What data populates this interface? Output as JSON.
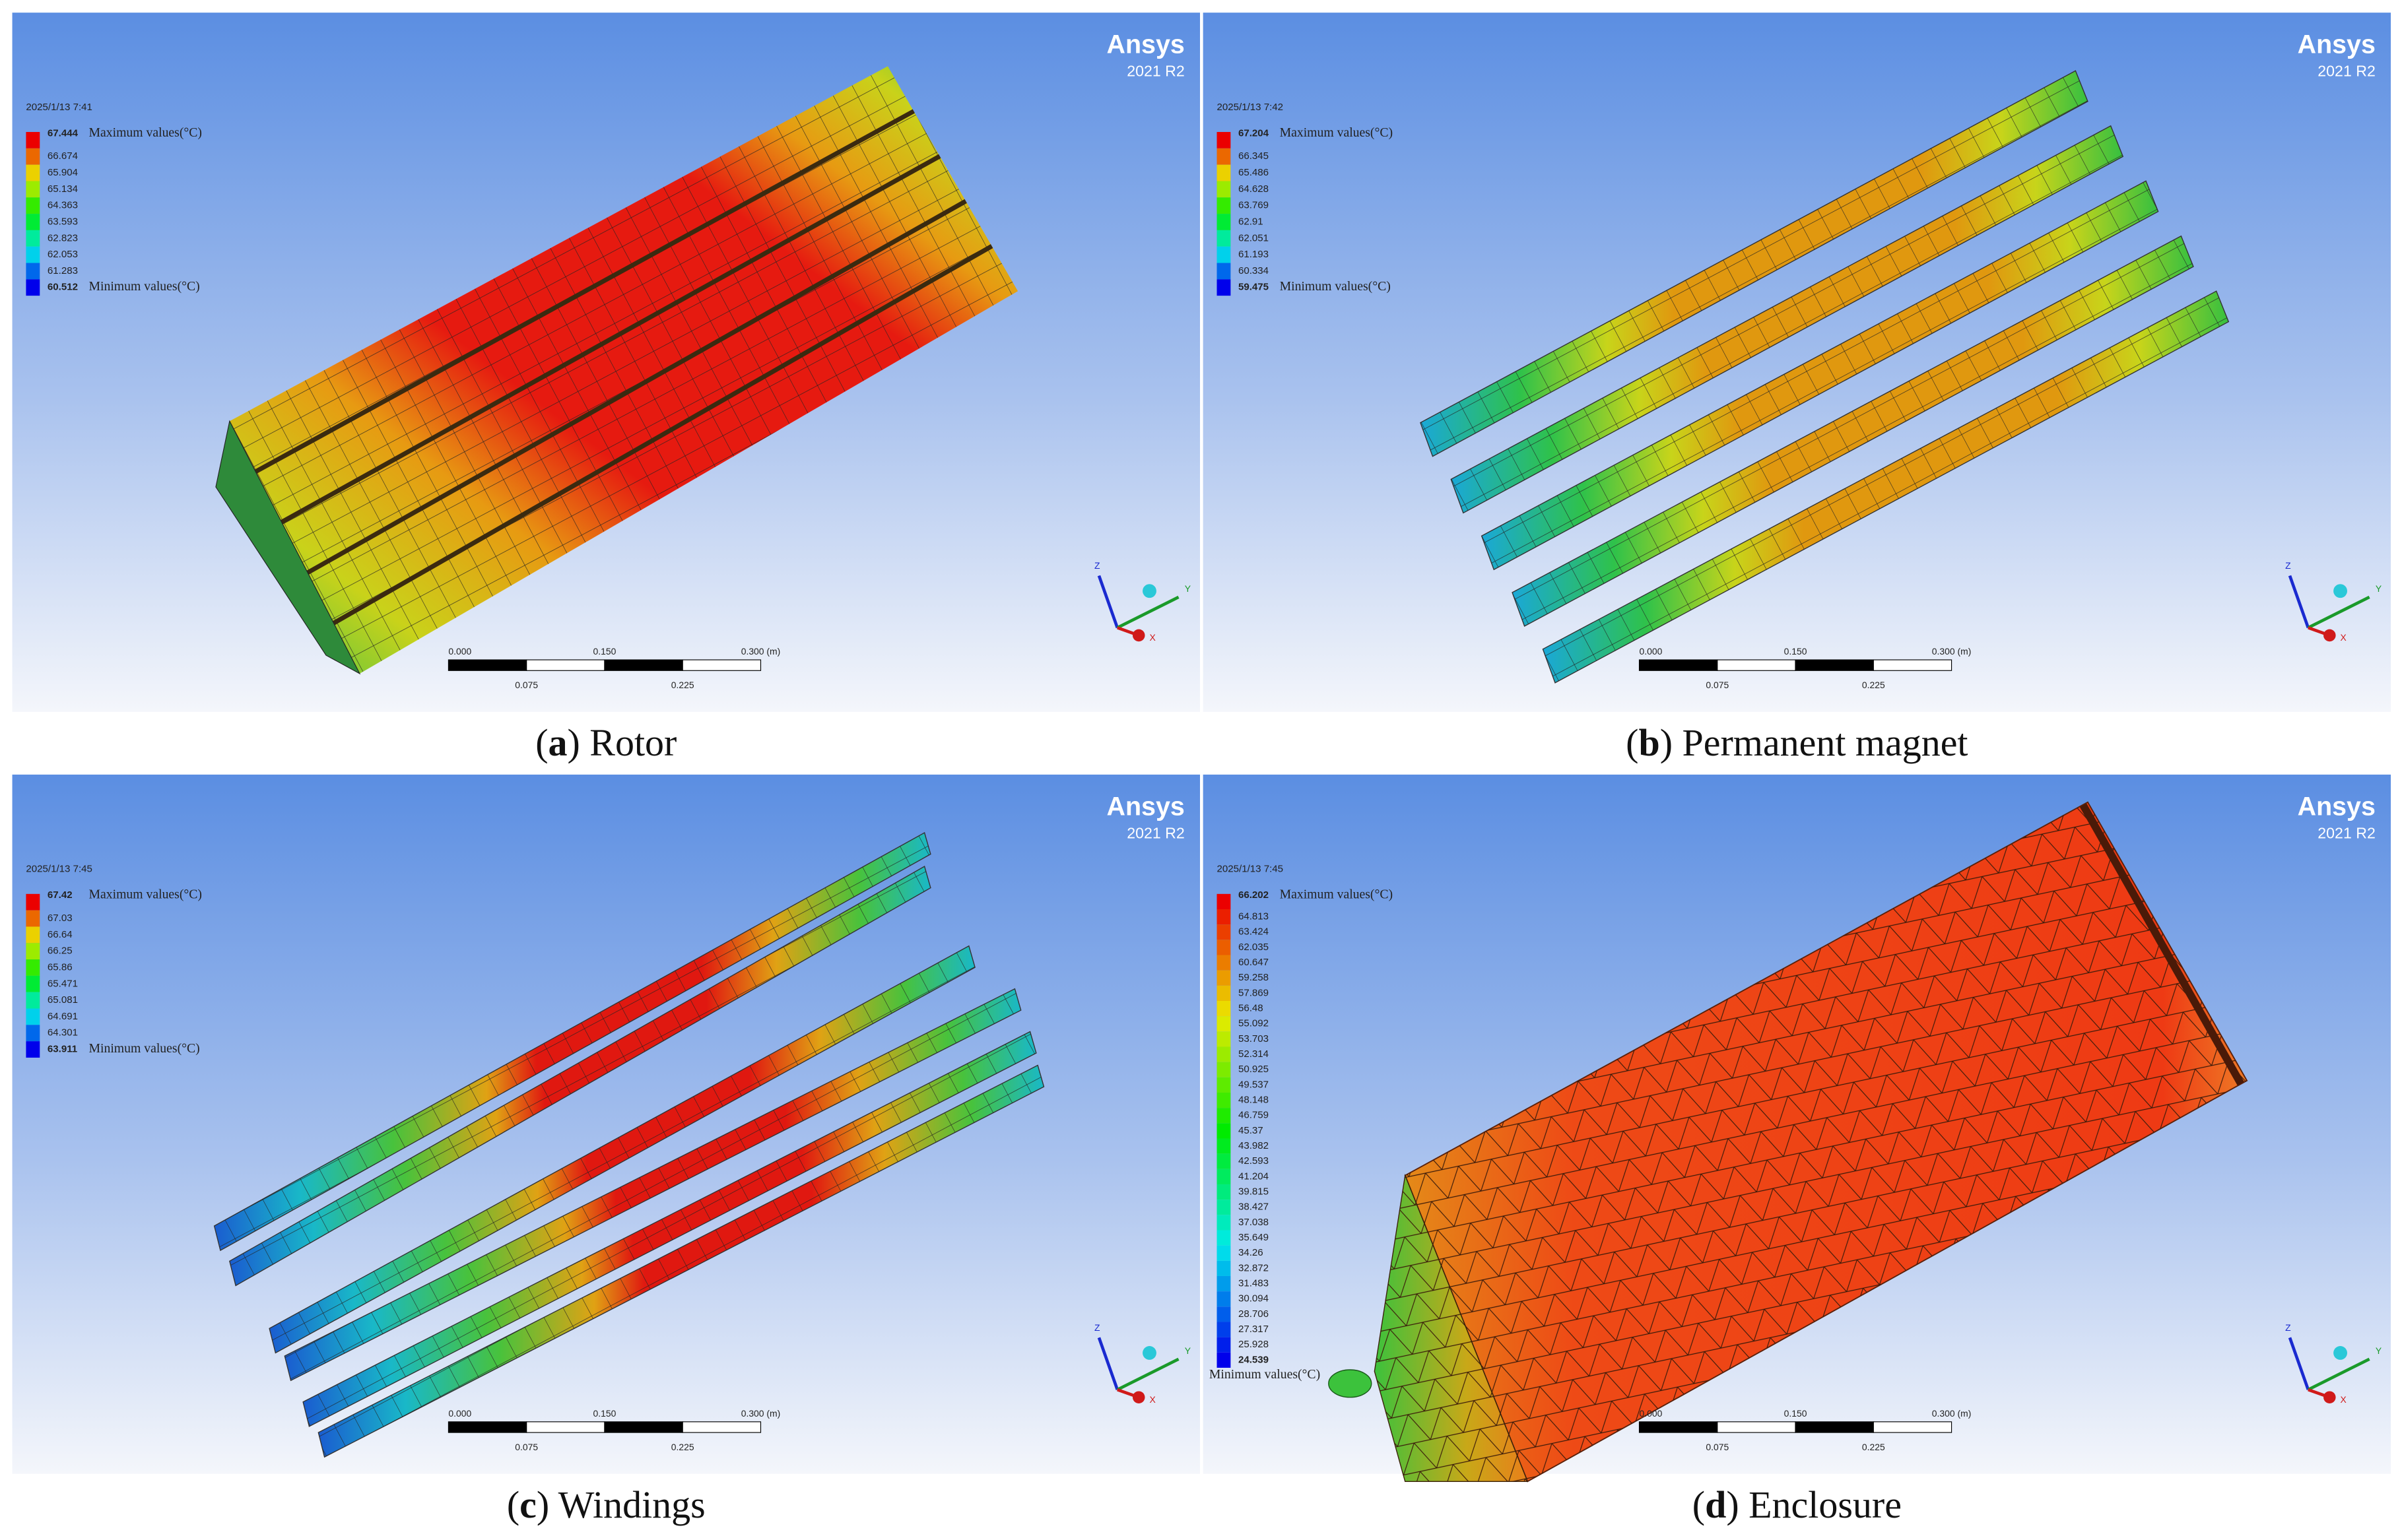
{
  "panels": [
    {
      "brand": "Ansys",
      "version": "2021 R2",
      "date": "2025/1/13 7:41",
      "legend": [
        "67.444",
        "66.674",
        "65.904",
        "65.134",
        "64.363",
        "63.593",
        "62.823",
        "62.053",
        "61.283",
        "60.512"
      ],
      "max_label": "Maximum values(°C)",
      "min_label": "Minimum values(°C)",
      "scale": [
        "0.000",
        "0.150",
        "0.300 (m)",
        "0.075",
        "0.225"
      ],
      "axes": [
        "Z",
        "Y",
        "X"
      ],
      "caption": [
        "(",
        "a",
        ") Rotor"
      ]
    },
    {
      "brand": "Ansys",
      "version": "2021 R2",
      "date": "2025/1/13 7:42",
      "legend": [
        "67.204",
        "66.345",
        "65.486",
        "64.628",
        "63.769",
        "62.91",
        "62.051",
        "61.193",
        "60.334",
        "59.475"
      ],
      "max_label": "Maximum values(°C)",
      "min_label": "Minimum values(°C)",
      "scale": [
        "0.000",
        "0.150",
        "0.300 (m)",
        "0.075",
        "0.225"
      ],
      "axes": [
        "Z",
        "Y",
        "X"
      ],
      "caption": [
        "(",
        "b",
        ") Permanent magnet"
      ]
    },
    {
      "brand": "Ansys",
      "version": "2021 R2",
      "date": "2025/1/13 7:45",
      "legend": [
        "67.42",
        "67.03",
        "66.64",
        "66.25",
        "65.86",
        "65.471",
        "65.081",
        "64.691",
        "64.301",
        "63.911"
      ],
      "max_label": "Maximum values(°C)",
      "min_label": "Minimum values(°C)",
      "scale": [
        "0.000",
        "0.150",
        "0.300 (m)",
        "0.075",
        "0.225"
      ],
      "axes": [
        "Z",
        "Y",
        "X"
      ],
      "caption": [
        "(",
        "c",
        ") Windings"
      ]
    },
    {
      "brand": "Ansys",
      "version": "2021 R2",
      "date": "2025/1/13 7:45",
      "legend": [
        "66.202",
        "64.813",
        "63.424",
        "62.035",
        "60.647",
        "59.258",
        "57.869",
        "56.48",
        "55.092",
        "53.703",
        "52.314",
        "50.925",
        "49.537",
        "48.148",
        "46.759",
        "45.37",
        "43.982",
        "42.593",
        "41.204",
        "39.815",
        "38.427",
        "37.038",
        "35.649",
        "34.26",
        "32.872",
        "31.483",
        "30.094",
        "28.706",
        "27.317",
        "25.928",
        "24.539"
      ],
      "max_label": "Maximum values(°C)",
      "min_label": "Minimum values(°C)",
      "scale": [
        "0.000",
        "0.150",
        "0.300 (m)",
        "0.075",
        "0.225"
      ],
      "axes": [
        "Z",
        "Y",
        "X"
      ],
      "caption": [
        "(",
        "d",
        ") Enclosure"
      ]
    }
  ]
}
